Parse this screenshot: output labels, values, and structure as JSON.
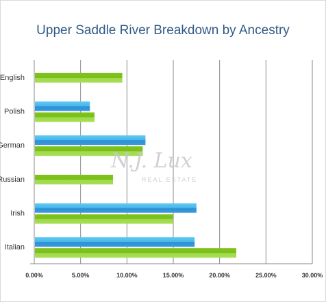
{
  "chart_data": {
    "type": "bar",
    "orientation": "horizontal",
    "title": "Upper Saddle River Breakdown by Ancestry",
    "categories": [
      "English",
      "Polish",
      "German",
      "Russian",
      "Irish",
      "Italian"
    ],
    "series": [
      {
        "color": "#3a9ad9",
        "values": [
          null,
          6.0,
          12.0,
          null,
          17.5,
          17.3
        ]
      },
      {
        "color": "#7dc823",
        "values": [
          9.5,
          6.5,
          11.7,
          8.5,
          15.0,
          21.8
        ]
      }
    ],
    "xlim": [
      0,
      30
    ],
    "ticks": [
      "0.00%",
      "5.00%",
      "10.00%",
      "15.00%",
      "20.00%",
      "25.00%",
      "30.00%"
    ],
    "grid": true,
    "xlabel": "",
    "ylabel": ""
  },
  "watermark": {
    "main": "N.J. Lux",
    "sub": "REAL ESTATE"
  }
}
